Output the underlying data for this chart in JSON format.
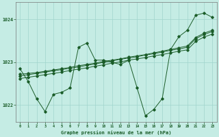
{
  "xlabel": "Graphe pression niveau de la mer (hPa)",
  "background_color": "#c5ece4",
  "grid_color": "#a0d4cc",
  "line_color": "#1a5c28",
  "xlim": [
    -0.5,
    23.5
  ],
  "ylim": [
    1021.6,
    1024.4
  ],
  "yticks": [
    1022,
    1023,
    1024
  ],
  "xticks": [
    0,
    1,
    2,
    3,
    4,
    5,
    6,
    7,
    8,
    9,
    10,
    11,
    12,
    13,
    14,
    15,
    16,
    17,
    18,
    19,
    20,
    21,
    22,
    23
  ],
  "series_jagged": [
    1022.85,
    1022.55,
    1022.15,
    1021.85,
    1022.25,
    1022.3,
    1022.4,
    1023.35,
    1023.45,
    1023.05,
    1023.05,
    1023.0,
    1022.95,
    1023.05,
    1022.4,
    1021.75,
    1021.9,
    1022.15,
    1023.3,
    1023.6,
    1023.75,
    1024.1,
    1024.15,
    1024.05
  ],
  "series_trend1": [
    1022.72,
    1022.74,
    1022.76,
    1022.79,
    1022.82,
    1022.85,
    1022.88,
    1022.92,
    1022.95,
    1022.98,
    1023.02,
    1023.05,
    1023.08,
    1023.12,
    1023.15,
    1023.18,
    1023.22,
    1023.26,
    1023.3,
    1023.34,
    1023.38,
    1023.58,
    1023.68,
    1023.75
  ],
  "series_trend2": [
    1022.68,
    1022.71,
    1022.74,
    1022.77,
    1022.8,
    1022.83,
    1022.86,
    1022.89,
    1022.93,
    1022.96,
    1023.0,
    1023.03,
    1023.07,
    1023.1,
    1023.13,
    1023.17,
    1023.2,
    1023.24,
    1023.28,
    1023.31,
    1023.35,
    1023.55,
    1023.65,
    1023.72
  ],
  "series_trend3": [
    1022.62,
    1022.65,
    1022.68,
    1022.71,
    1022.74,
    1022.77,
    1022.81,
    1022.84,
    1022.87,
    1022.91,
    1022.94,
    1022.98,
    1023.01,
    1023.05,
    1023.08,
    1023.11,
    1023.15,
    1023.18,
    1023.22,
    1023.26,
    1023.29,
    1023.49,
    1023.59,
    1023.66
  ]
}
